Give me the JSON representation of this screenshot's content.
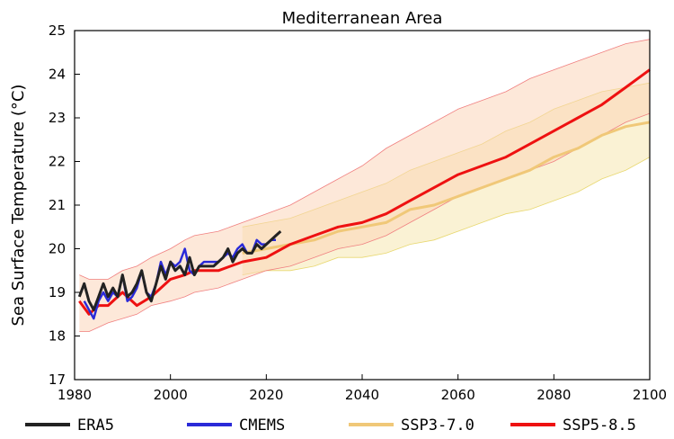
{
  "chart_data": {
    "type": "line",
    "title": "Mediterranean Area",
    "xlabel": "",
    "ylabel": "Sea Surface Temperature (°C)",
    "xlim": [
      1980,
      2100
    ],
    "ylim": [
      17,
      25
    ],
    "xticks": [
      1980,
      2000,
      2020,
      2040,
      2060,
      2080,
      2100
    ],
    "yticks": [
      17,
      18,
      19,
      20,
      21,
      22,
      23,
      24,
      25
    ],
    "grid": false,
    "legend_position": "bottom",
    "series": [
      {
        "name": "ERA5",
        "color": "#222222",
        "x": [
          1981,
          1982,
          1983,
          1984,
          1985,
          1986,
          1987,
          1988,
          1989,
          1990,
          1991,
          1992,
          1993,
          1994,
          1995,
          1996,
          1997,
          1998,
          1999,
          2000,
          2001,
          2002,
          2003,
          2004,
          2005,
          2006,
          2007,
          2008,
          2009,
          2010,
          2011,
          2012,
          2013,
          2014,
          2015,
          2016,
          2017,
          2018,
          2019,
          2020,
          2021,
          2022,
          2023
        ],
        "y": [
          18.9,
          19.2,
          18.8,
          18.6,
          18.9,
          19.2,
          18.9,
          19.1,
          18.9,
          19.4,
          18.9,
          19.0,
          19.2,
          19.5,
          19.0,
          18.8,
          19.2,
          19.6,
          19.3,
          19.7,
          19.5,
          19.6,
          19.4,
          19.8,
          19.4,
          19.6,
          19.6,
          19.6,
          19.6,
          19.7,
          19.8,
          20.0,
          19.7,
          19.9,
          20.0,
          19.9,
          19.9,
          20.1,
          20.0,
          20.1,
          20.2,
          20.3,
          20.4
        ]
      },
      {
        "name": "CMEMS",
        "color": "#2a2ad8",
        "x": [
          1982,
          1983,
          1984,
          1985,
          1986,
          1987,
          1988,
          1989,
          1990,
          1991,
          1992,
          1993,
          1994,
          1995,
          1996,
          1997,
          1998,
          1999,
          2000,
          2001,
          2002,
          2003,
          2004,
          2005,
          2006,
          2007,
          2008,
          2009,
          2010,
          2011,
          2012,
          2013,
          2014,
          2015,
          2016,
          2017,
          2018,
          2019,
          2020,
          2021,
          2022
        ],
        "y": [
          18.8,
          18.6,
          18.4,
          18.8,
          19.0,
          18.8,
          19.0,
          18.9,
          19.4,
          18.8,
          18.9,
          19.1,
          19.5,
          19.0,
          18.9,
          19.2,
          19.7,
          19.4,
          19.7,
          19.6,
          19.7,
          20.0,
          19.5,
          19.4,
          19.6,
          19.7,
          19.7,
          19.7,
          19.7,
          19.8,
          19.9,
          19.8,
          20.0,
          20.1,
          19.9,
          19.9,
          20.2,
          20.1,
          20.1,
          20.2,
          20.2
        ]
      },
      {
        "name": "SSP3-7.0",
        "color": "#f0c878",
        "x": [
          2015,
          2020,
          2025,
          2030,
          2035,
          2040,
          2045,
          2050,
          2055,
          2060,
          2065,
          2070,
          2075,
          2080,
          2085,
          2090,
          2095,
          2100
        ],
        "y": [
          19.9,
          20.0,
          20.1,
          20.2,
          20.4,
          20.5,
          20.6,
          20.9,
          21.0,
          21.2,
          21.4,
          21.6,
          21.8,
          22.1,
          22.3,
          22.6,
          22.8,
          22.9
        ],
        "band_upper": [
          20.5,
          20.6,
          20.7,
          20.9,
          21.1,
          21.3,
          21.5,
          21.8,
          22.0,
          22.2,
          22.4,
          22.7,
          22.9,
          23.2,
          23.4,
          23.6,
          23.7,
          23.8
        ],
        "band_lower": [
          19.4,
          19.5,
          19.5,
          19.6,
          19.8,
          19.8,
          19.9,
          20.1,
          20.2,
          20.4,
          20.6,
          20.8,
          20.9,
          21.1,
          21.3,
          21.6,
          21.8,
          22.1
        ]
      },
      {
        "name": "SSP5-8.5",
        "color": "#ee1111",
        "x": [
          1981,
          1983,
          1985,
          1987,
          1990,
          1993,
          1996,
          2000,
          2003,
          2005,
          2010,
          2015,
          2020,
          2025,
          2030,
          2035,
          2040,
          2045,
          2050,
          2055,
          2060,
          2065,
          2070,
          2075,
          2080,
          2085,
          2090,
          2095,
          2100
        ],
        "y": [
          18.8,
          18.5,
          18.7,
          18.7,
          19.0,
          18.7,
          18.9,
          19.3,
          19.4,
          19.5,
          19.5,
          19.7,
          19.8,
          20.1,
          20.3,
          20.5,
          20.6,
          20.8,
          21.1,
          21.4,
          21.7,
          21.9,
          22.1,
          22.4,
          22.7,
          23.0,
          23.3,
          23.7,
          24.1
        ],
        "band_upper": [
          19.4,
          19.3,
          19.3,
          19.3,
          19.5,
          19.6,
          19.8,
          20.0,
          20.2,
          20.3,
          20.4,
          20.6,
          20.8,
          21.0,
          21.3,
          21.6,
          21.9,
          22.3,
          22.6,
          22.9,
          23.2,
          23.4,
          23.6,
          23.9,
          24.1,
          24.3,
          24.5,
          24.7,
          24.8
        ],
        "band_lower": [
          18.1,
          18.1,
          18.2,
          18.3,
          18.4,
          18.5,
          18.7,
          18.8,
          18.9,
          19.0,
          19.1,
          19.3,
          19.5,
          19.6,
          19.8,
          20.0,
          20.1,
          20.3,
          20.6,
          20.9,
          21.2,
          21.4,
          21.6,
          21.8,
          22.0,
          22.3,
          22.6,
          22.9,
          23.1
        ]
      }
    ]
  }
}
